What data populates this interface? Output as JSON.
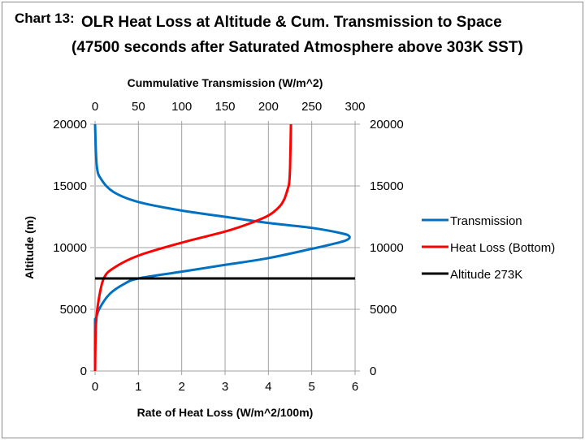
{
  "chart_data": {
    "type": "line",
    "title_prefix": "Chart 13:",
    "title": "OLR Heat Loss at Altitude & Cum. Transmission to Space",
    "subtitle": "(47500 seconds after Saturated Atmosphere above 303K SST)",
    "xlabel_bottom": "Rate of Heat Loss (W/m^2/100m)",
    "xlabel_top": "Cummulative Transmission  (W/m^2)",
    "ylabel_left": "Altitude (m)",
    "xlim_bottom": [
      0,
      6
    ],
    "xlim_top": [
      0,
      300
    ],
    "ylim": [
      0,
      20000
    ],
    "xticks_bottom": [
      "0",
      "1",
      "2",
      "3",
      "4",
      "5",
      "6"
    ],
    "xticks_top": [
      "0",
      "50",
      "100",
      "150",
      "200",
      "250",
      "300"
    ],
    "yticks_left": [
      "0",
      "5000",
      "10000",
      "15000",
      "20000"
    ],
    "yticks_right": [
      "0",
      "5000",
      "10000",
      "15000",
      "20000"
    ],
    "grid": true,
    "legend_position": "right",
    "series": [
      {
        "name": "Transmission",
        "color": "#0070c0",
        "axis": "bottom",
        "points": [
          [
            0,
            20000
          ],
          [
            0.04,
            16600
          ],
          [
            0.15,
            15500
          ],
          [
            0.43,
            14500
          ],
          [
            1.0,
            13700
          ],
          [
            2.0,
            13000
          ],
          [
            3.0,
            12500
          ],
          [
            4.0,
            12000
          ],
          [
            5.0,
            11600
          ],
          [
            5.7,
            11150
          ],
          [
            5.87,
            10900
          ],
          [
            5.8,
            10600
          ],
          [
            5.5,
            10300
          ],
          [
            5.0,
            9900
          ],
          [
            4.0,
            9150
          ],
          [
            3.0,
            8600
          ],
          [
            2.0,
            8050
          ],
          [
            1.0,
            7500
          ],
          [
            0.67,
            7050
          ],
          [
            0.34,
            6250
          ],
          [
            0.1,
            5050
          ],
          [
            0.01,
            4100
          ],
          [
            0,
            3900
          ],
          [
            0,
            0
          ]
        ]
      },
      {
        "name": "Heat Loss (Bottom)",
        "color": "#ff0000",
        "axis": "bottom",
        "points": [
          [
            0,
            0
          ],
          [
            0.02,
            3750
          ],
          [
            0.08,
            5700
          ],
          [
            0.2,
            7500
          ],
          [
            0.43,
            8350
          ],
          [
            1.0,
            9350
          ],
          [
            2.0,
            10400
          ],
          [
            3.0,
            11300
          ],
          [
            3.6,
            12000
          ],
          [
            4.0,
            12600
          ],
          [
            4.25,
            13300
          ],
          [
            4.37,
            13950
          ],
          [
            4.45,
            14800
          ],
          [
            4.48,
            15250
          ],
          [
            4.5,
            16500
          ],
          [
            4.52,
            20000
          ]
        ]
      },
      {
        "name": "Altitude 273K",
        "color": "#000000",
        "axis": "bottom",
        "points": [
          [
            0,
            7500
          ],
          [
            6,
            7500
          ]
        ]
      }
    ]
  }
}
